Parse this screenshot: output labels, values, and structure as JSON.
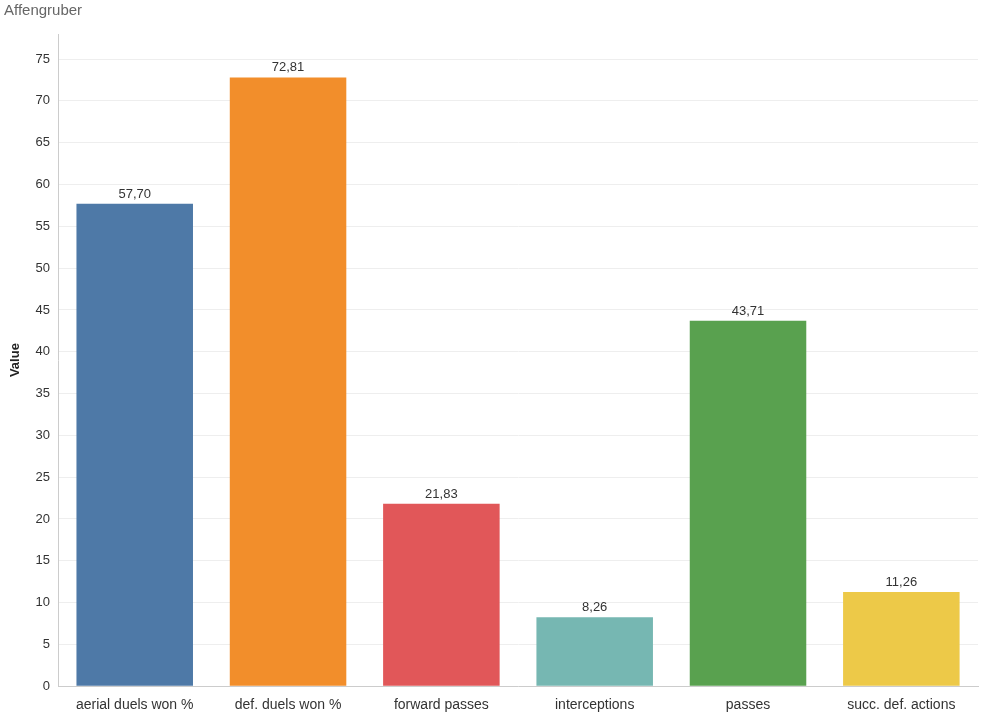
{
  "chart_data": {
    "type": "bar",
    "title": "Affengruber",
    "y_label": "Value",
    "categories": [
      "aerial duels won %",
      "def. duels won %",
      "forward passes",
      "interceptions",
      "passes",
      "succ. def. actions"
    ],
    "values": [
      57.7,
      72.81,
      21.83,
      8.26,
      43.71,
      11.26
    ],
    "value_labels": [
      "57,70",
      "72,81",
      "21,83",
      "8,26",
      "43,71",
      "11,26"
    ],
    "colors": [
      "#4e79a7",
      "#f28e2b",
      "#e15759",
      "#76b7b2",
      "#59a14f",
      "#edc948"
    ],
    "ylim": [
      0,
      78
    ],
    "yticks": [
      0,
      5,
      10,
      15,
      20,
      25,
      30,
      35,
      40,
      45,
      50,
      55,
      60,
      65,
      70,
      75
    ],
    "grid": true,
    "data_labels": true
  }
}
